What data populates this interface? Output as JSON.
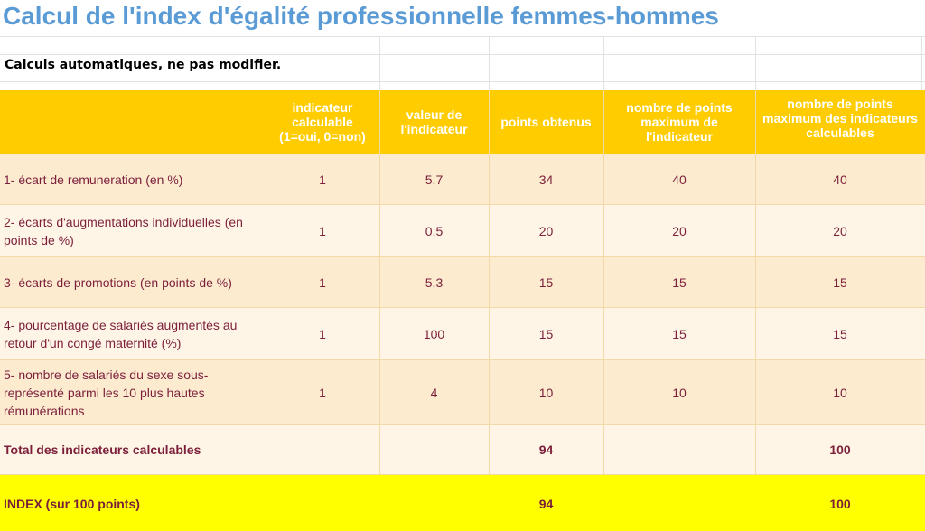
{
  "title": "Calcul de l'index d'égalité professionnelle femmes-hommes",
  "subtitle": "Calculs automatiques, ne pas modifier.",
  "colors": {
    "title": "#5b9bd5",
    "header_bg": "#ffcc00",
    "row_bg": "#fdebd0",
    "row_alt_bg": "#fff5e6",
    "index_bg": "#ffff00",
    "text": "#7b1f3a"
  },
  "table": {
    "headers": [
      "",
      "indicateur calculable (1=oui, 0=non)",
      "valeur de l'indicateur",
      "points obtenus",
      "nombre de points maximum de l'indicateur",
      "nombre de points maximum des indicateurs calculables"
    ],
    "rows": [
      {
        "label": "1- écart de remuneration (en %)",
        "calculable": "1",
        "valeur": "5,7",
        "points": "34",
        "max_ind": "40",
        "max_calc": "40"
      },
      {
        "label": "2- écarts d'augmentations individuelles (en points de %)",
        "calculable": "1",
        "valeur": "0,5",
        "points": "20",
        "max_ind": "20",
        "max_calc": "20"
      },
      {
        "label": "3- écarts de promotions (en points de %)",
        "calculable": "1",
        "valeur": "5,3",
        "points": "15",
        "max_ind": "15",
        "max_calc": "15"
      },
      {
        "label": "4- pourcentage de salariés augmentés au retour d'un congé maternité (%)",
        "calculable": "1",
        "valeur": "100",
        "points": "15",
        "max_ind": "15",
        "max_calc": "15"
      },
      {
        "label": "5- nombre de salariés du sexe sous-représenté parmi les 10 plus hautes rémunérations",
        "calculable": "1",
        "valeur": "4",
        "points": "10",
        "max_ind": "10",
        "max_calc": "10"
      }
    ],
    "total": {
      "label": "Total des indicateurs calculables",
      "points": "94",
      "max_calc": "100"
    },
    "index": {
      "label": "INDEX (sur 100 points)",
      "points": "94",
      "max_calc": "100"
    }
  }
}
